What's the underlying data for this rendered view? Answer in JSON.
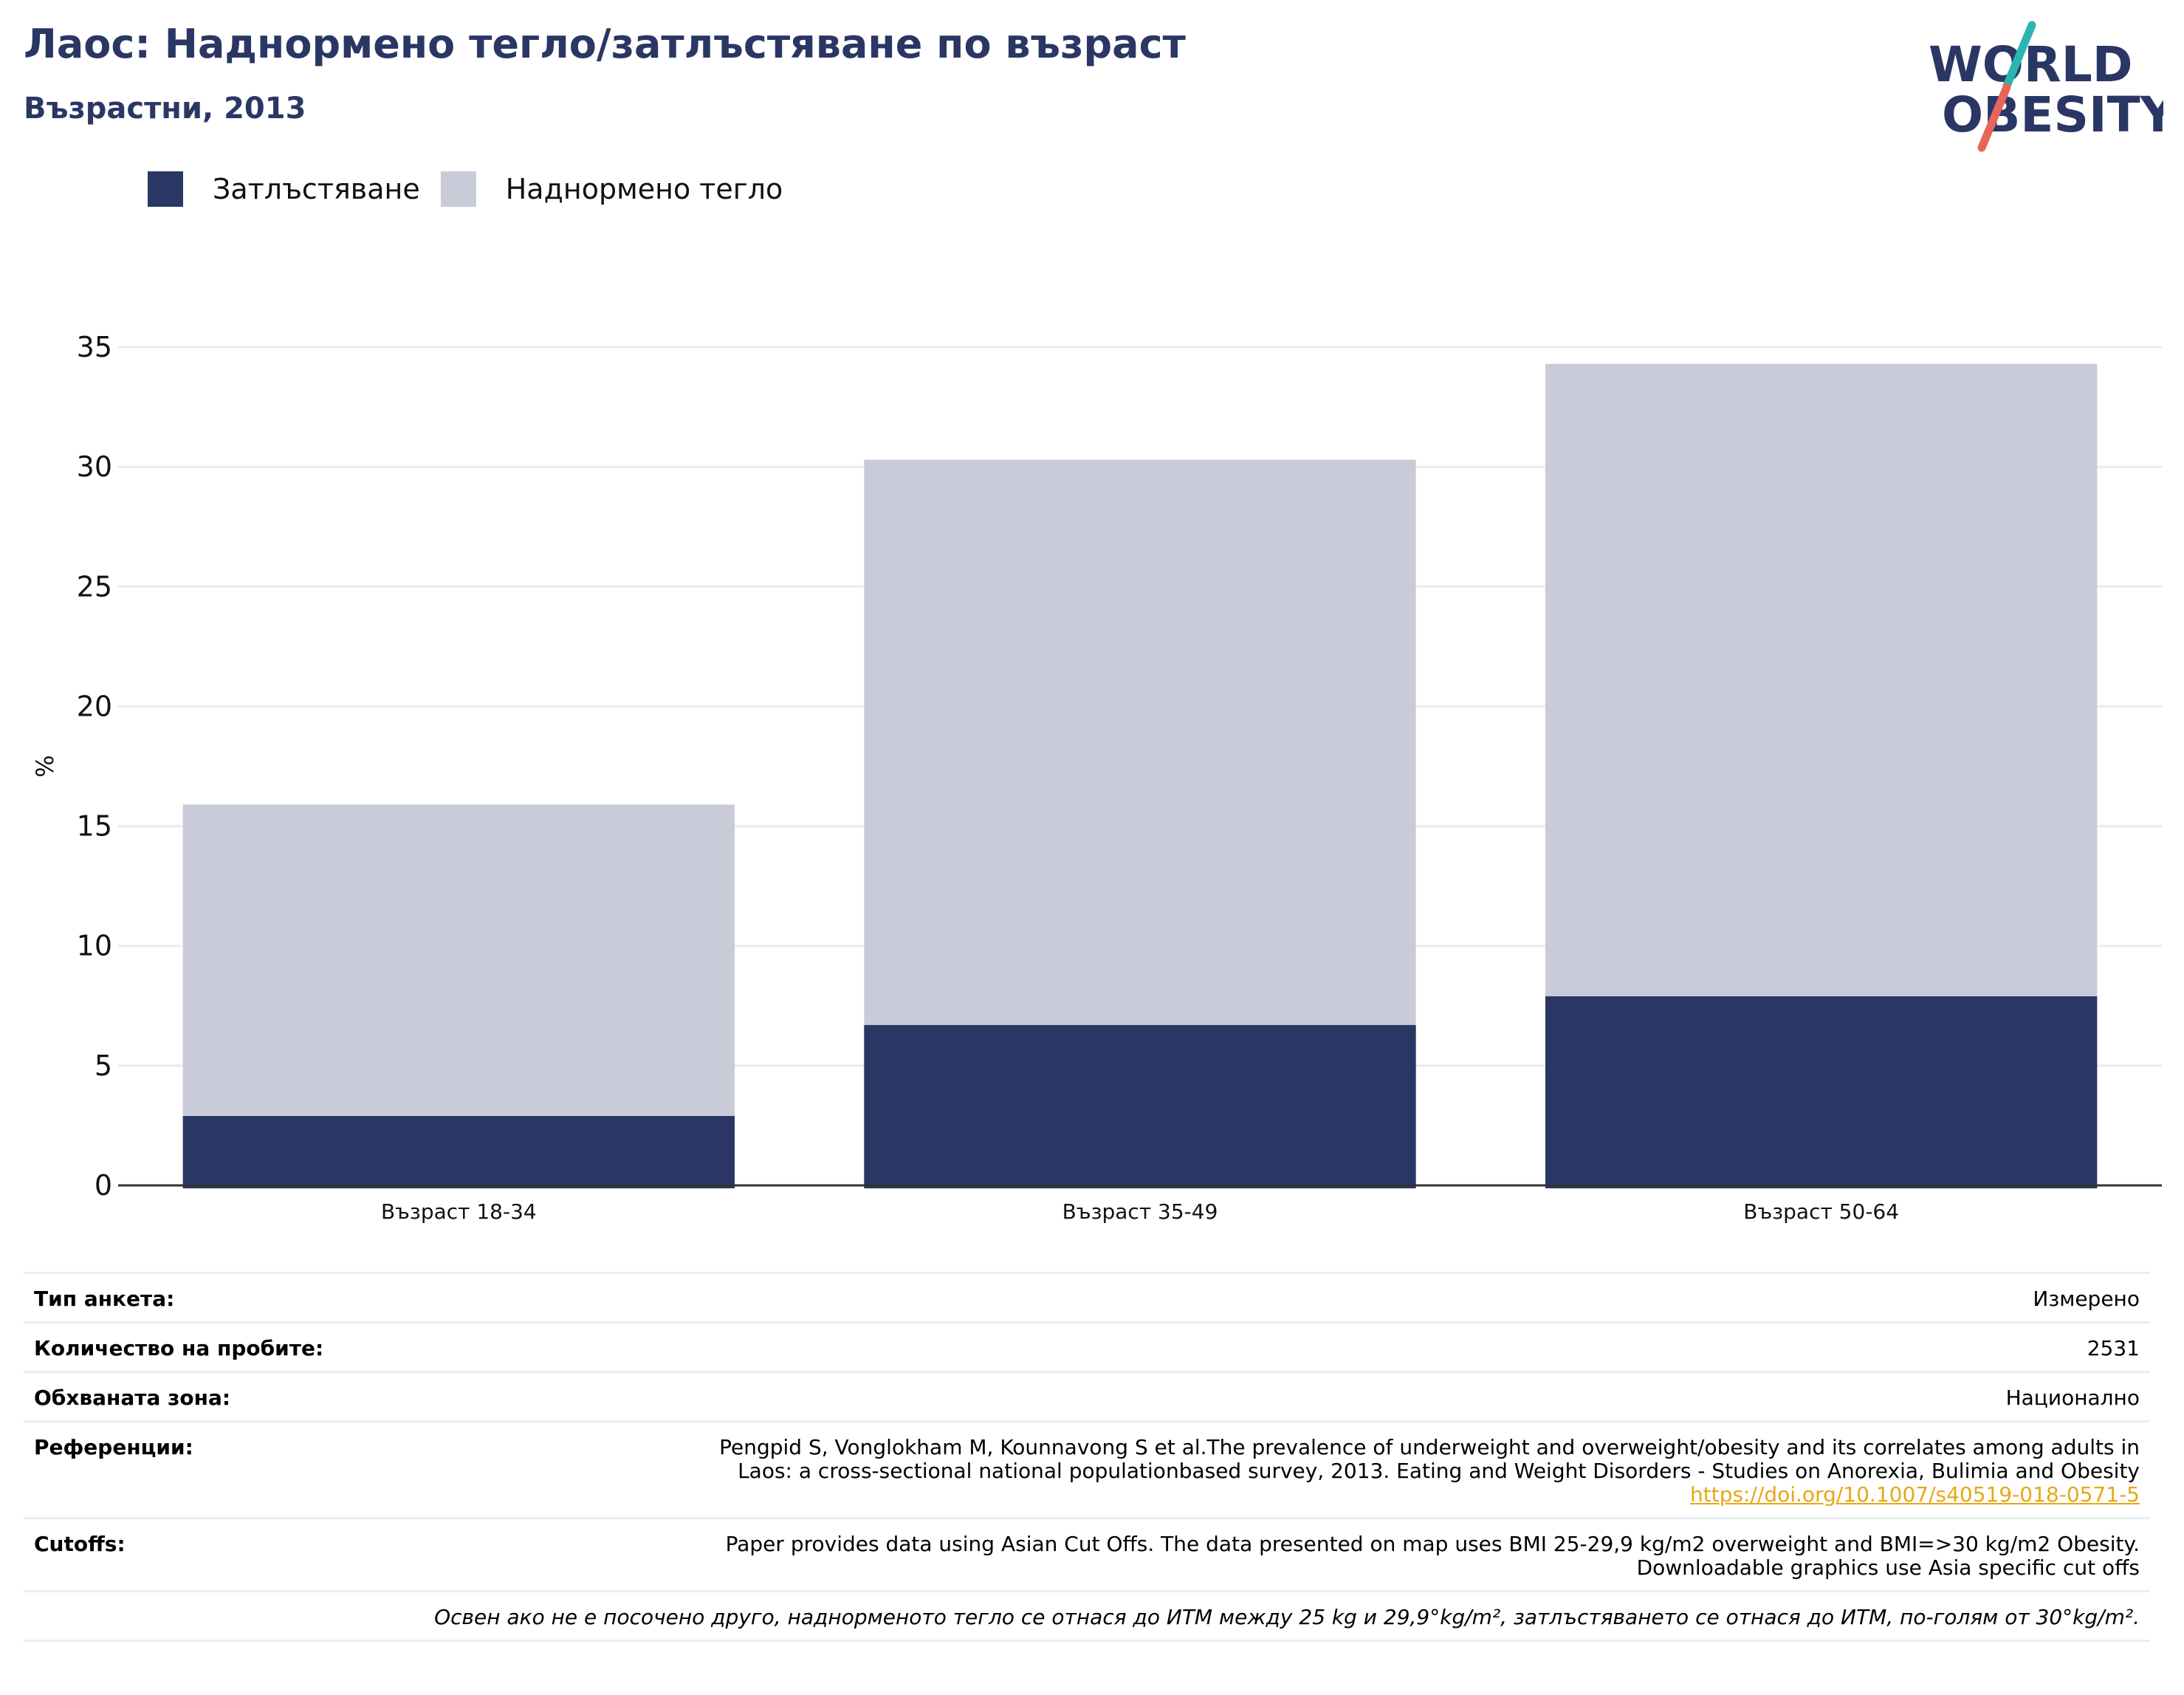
{
  "header": {
    "title": "Лаос: Наднормено тегло/затлъстяване по възраст",
    "subtitle": "Възрастни, 2013"
  },
  "logo": {
    "line1": "WORLD",
    "line2": "OBESITY",
    "colors": {
      "text": "#2a3764",
      "teal": "#2ab5b0",
      "coral": "#e8645a"
    }
  },
  "chart_data": {
    "type": "bar",
    "stacked": true,
    "categories": [
      "Възраст 18-34",
      "Възраст 35-49",
      "Възраст 50-64"
    ],
    "series": [
      {
        "name": "Затлъстяване",
        "color": "#2a3764",
        "values": [
          2.9,
          6.7,
          7.9
        ]
      },
      {
        "name": "Наднормено тегло",
        "color": "#cacbd8",
        "values": [
          13.0,
          23.6,
          26.4
        ]
      }
    ],
    "ylabel": "%",
    "ylim": [
      0,
      35
    ],
    "yticks": [
      0,
      5,
      10,
      15,
      20,
      25,
      30,
      35
    ],
    "grid": true,
    "legend_position": "top-left"
  },
  "info": {
    "survey_type": {
      "label": "Тип анкета:",
      "value": "Измерено"
    },
    "sample_size": {
      "label": "Количество на пробите:",
      "value": "2531"
    },
    "area": {
      "label": "Обхваната зона:",
      "value": "Национално"
    },
    "references": {
      "label": "Референции:",
      "line1": "Pengpid S, Vonglokham M, Kounnavong S et al.The prevalence of underweight and overweight/obesity and its correlates among adults in",
      "line2": "Laos: a cross-sectional national populationbased survey, 2013. Eating and Weight Disorders - Studies on Anorexia, Bulimia and Obesity",
      "link": "https://doi.org/10.1007/s40519-018-0571-5"
    },
    "cutoffs": {
      "label": "Cutoffs:",
      "line1": "Paper provides data using Asian Cut Offs. The data presented on map uses BMI 25-29,9 kg/m2 overweight and BMI=>30 kg/m2 Obesity.",
      "line2": "Downloadable graphics use Asia specific cut offs"
    },
    "note": "Освен ако не е посочено друго, наднорменото тегло се отнася до ИТМ между 25 kg и 29,9°kg/m², затлъстяването се отнася до ИТМ, по-голям от 30°kg/m²."
  }
}
